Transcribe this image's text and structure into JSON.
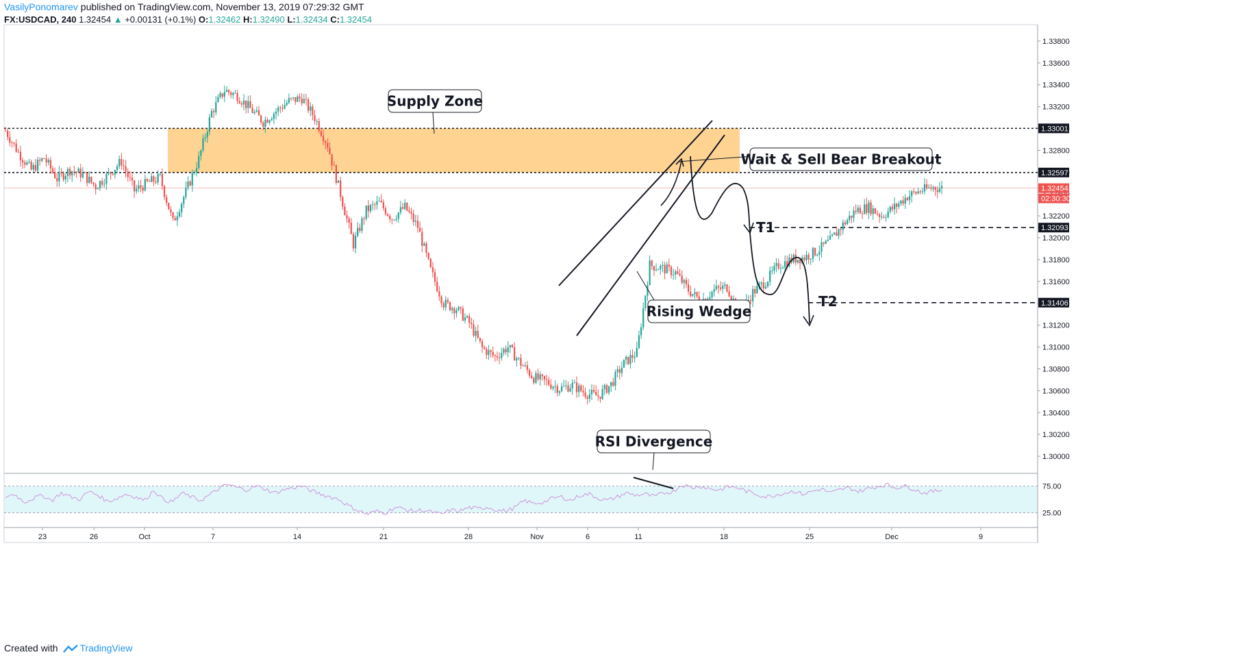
{
  "header": {
    "author": "VasilyPonomarev",
    "published_text": "published on TradingView.com, November 13, 2019 07:29:32 GMT",
    "symbol": "FX:USDCAD, 240",
    "last": "1.32454",
    "change_arrow": "▲",
    "change": "+0.00131 (+0.1%)",
    "open_label": "O:",
    "open": "1.32462",
    "high_label": "H:",
    "high": "1.32490",
    "low_label": "L:",
    "low": "1.32434",
    "close_label": "C:",
    "close": "1.32454"
  },
  "footer": {
    "created_with": "Created with",
    "brand": "TradingView",
    "logo_icon": "tradingview-logo-icon"
  },
  "colors": {
    "up": "#26a69a",
    "down": "#ef5350",
    "zone": "#ffcc80",
    "rsi_band": "#e0f7fa",
    "rsi_line": "#ce93d8",
    "accent": "#2196f3"
  },
  "chart_data": [
    {
      "type": "candlestick",
      "title": "",
      "price_axis_ticks": [
        "1.33800",
        "1.33600",
        "1.33400",
        "1.33200",
        "1.33000",
        "1.32800",
        "1.32600",
        "1.32400",
        "1.32200",
        "1.32000",
        "1.31800",
        "1.31600",
        "1.31400",
        "1.31200",
        "1.31000",
        "1.30800",
        "1.30600",
        "1.30400",
        "1.30200",
        "1.30000"
      ],
      "time_axis_ticks": [
        "23",
        "26",
        "Oct",
        "7",
        "14",
        "21",
        "28",
        "Nov",
        "6",
        "11",
        "18",
        "25",
        "Dec",
        "9"
      ],
      "ylim": [
        1.2985,
        1.3395
      ],
      "price_labels": [
        {
          "value": 1.33001,
          "text": "1.33001",
          "style": "dark"
        },
        {
          "value": 1.32597,
          "text": "1.32597",
          "style": "dark"
        },
        {
          "value": 1.32454,
          "text": "1.32454",
          "style": "last"
        },
        {
          "value": 1.3236,
          "text": "02:30:30",
          "style": "last"
        },
        {
          "value": 1.32093,
          "text": "1.32093",
          "style": "dark"
        },
        {
          "value": 1.31406,
          "text": "1.31406",
          "style": "dark"
        }
      ],
      "levels": [
        {
          "value": 1.33001,
          "style": "dotted"
        },
        {
          "value": 1.32597,
          "style": "dotted"
        },
        {
          "value": 1.32093,
          "style": "dashed",
          "label": "T1"
        },
        {
          "value": 1.31406,
          "style": "dashed",
          "label": "T2"
        }
      ],
      "supply_zone": {
        "from": 1.32597,
        "to": 1.33001
      },
      "annotations": [
        "Supply Zone",
        "Wait & Sell Bear Breakout",
        "Rising Wedge",
        "RSI Divergence",
        "T1",
        "T2"
      ],
      "price_path": [
        [
          0,
          1.3298
        ],
        [
          6,
          1.3278
        ],
        [
          12,
          1.3262
        ],
        [
          18,
          1.3273
        ],
        [
          24,
          1.3254
        ],
        [
          30,
          1.3262
        ],
        [
          36,
          1.3258
        ],
        [
          42,
          1.3247
        ],
        [
          48,
          1.3258
        ],
        [
          54,
          1.327
        ],
        [
          60,
          1.3243
        ],
        [
          66,
          1.325
        ],
        [
          72,
          1.3255
        ],
        [
          78,
          1.3214
        ],
        [
          84,
          1.3242
        ],
        [
          90,
          1.3272
        ],
        [
          96,
          1.3315
        ],
        [
          102,
          1.3335
        ],
        [
          108,
          1.333
        ],
        [
          114,
          1.3318
        ],
        [
          120,
          1.3306
        ],
        [
          126,
          1.3316
        ],
        [
          132,
          1.3325
        ],
        [
          138,
          1.3328
        ],
        [
          144,
          1.331
        ],
        [
          150,
          1.3285
        ],
        [
          156,
          1.324
        ],
        [
          162,
          1.3194
        ],
        [
          168,
          1.3225
        ],
        [
          174,
          1.3232
        ],
        [
          180,
          1.3218
        ],
        [
          186,
          1.3228
        ],
        [
          192,
          1.321
        ],
        [
          198,
          1.317
        ],
        [
          204,
          1.314
        ],
        [
          210,
          1.3135
        ],
        [
          216,
          1.3122
        ],
        [
          222,
          1.3099
        ],
        [
          228,
          1.3091
        ],
        [
          234,
          1.31
        ],
        [
          240,
          1.3085
        ],
        [
          246,
          1.3072
        ],
        [
          252,
          1.3068
        ],
        [
          258,
          1.3062
        ],
        [
          264,
          1.3065
        ],
        [
          270,
          1.3058
        ],
        [
          276,
          1.3055
        ],
        [
          282,
          1.3066
        ],
        [
          288,
          1.3085
        ],
        [
          294,
          1.3095
        ],
        [
          300,
          1.3175
        ],
        [
          306,
          1.3172
        ],
        [
          312,
          1.3168
        ],
        [
          318,
          1.3152
        ],
        [
          324,
          1.3142
        ],
        [
          330,
          1.3152
        ],
        [
          336,
          1.3155
        ],
        [
          342,
          1.313
        ],
        [
          348,
          1.315
        ],
        [
          354,
          1.316
        ],
        [
          360,
          1.3175
        ],
        [
          366,
          1.318
        ],
        [
          372,
          1.3182
        ],
        [
          378,
          1.3188
        ],
        [
          384,
          1.3197
        ],
        [
          390,
          1.3212
        ],
        [
          396,
          1.3225
        ],
        [
          402,
          1.3228
        ],
        [
          408,
          1.322
        ],
        [
          414,
          1.3228
        ],
        [
          420,
          1.3238
        ],
        [
          426,
          1.3243
        ],
        [
          432,
          1.3246
        ],
        [
          436,
          1.32454
        ]
      ],
      "rsi": {
        "levels": [
          75.0,
          25.0
        ],
        "axis_ticks": [
          "75.00",
          "25.00"
        ],
        "values": [
          55,
          60,
          45,
          52,
          58,
          48,
          62,
          55,
          50,
          65,
          58,
          46,
          52,
          60,
          55,
          48,
          68,
          50,
          45,
          62,
          55,
          48,
          58,
          70,
          78,
          72,
          68,
          75,
          70,
          62,
          68,
          72,
          75,
          66,
          60,
          55,
          50,
          38,
          30,
          22,
          28,
          25,
          35,
          32,
          28,
          30,
          26,
          22,
          30,
          28,
          35,
          32,
          36,
          30,
          28,
          35,
          48,
          42,
          45,
          52,
          55,
          48,
          58,
          60,
          52,
          48,
          55,
          62,
          58,
          60,
          55,
          62,
          65,
          78,
          72,
          75,
          70,
          68,
          74,
          72,
          65,
          60,
          55,
          58,
          62,
          66,
          60,
          65,
          70,
          62,
          68,
          72,
          65,
          70,
          74,
          78,
          72,
          75,
          70,
          62,
          65,
          68
        ]
      }
    }
  ]
}
